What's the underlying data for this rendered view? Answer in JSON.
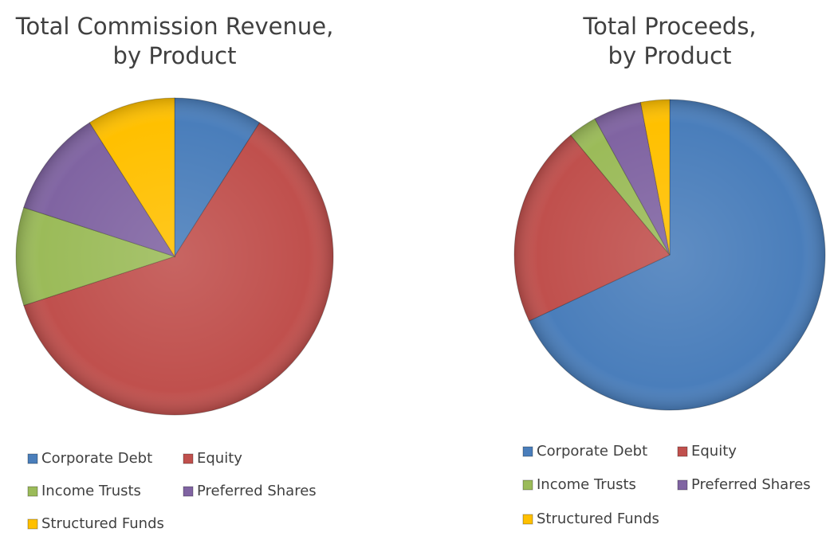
{
  "chart_data": [
    {
      "type": "pie",
      "title": [
        "Total Commission Revenue,",
        "by Product"
      ],
      "categories": [
        "Corporate Debt",
        "Equity",
        "Income Trusts",
        "Preferred Shares",
        "Structured Funds"
      ],
      "values": [
        9,
        61,
        10,
        11,
        9
      ],
      "colors": [
        "#4a7ebb",
        "#c0504d",
        "#9bbb59",
        "#8064a2",
        "#ffc000"
      ],
      "legend": "bottom"
    },
    {
      "type": "pie",
      "title": [
        "Total Proceeds,",
        "by Product"
      ],
      "categories": [
        "Corporate Debt",
        "Equity",
        "Income Trusts",
        "Preferred Shares",
        "Structured Funds"
      ],
      "values": [
        68,
        21,
        3,
        5,
        3
      ],
      "colors": [
        "#4a7ebb",
        "#c0504d",
        "#9bbb59",
        "#8064a2",
        "#ffc000"
      ],
      "legend": "bottom"
    }
  ]
}
